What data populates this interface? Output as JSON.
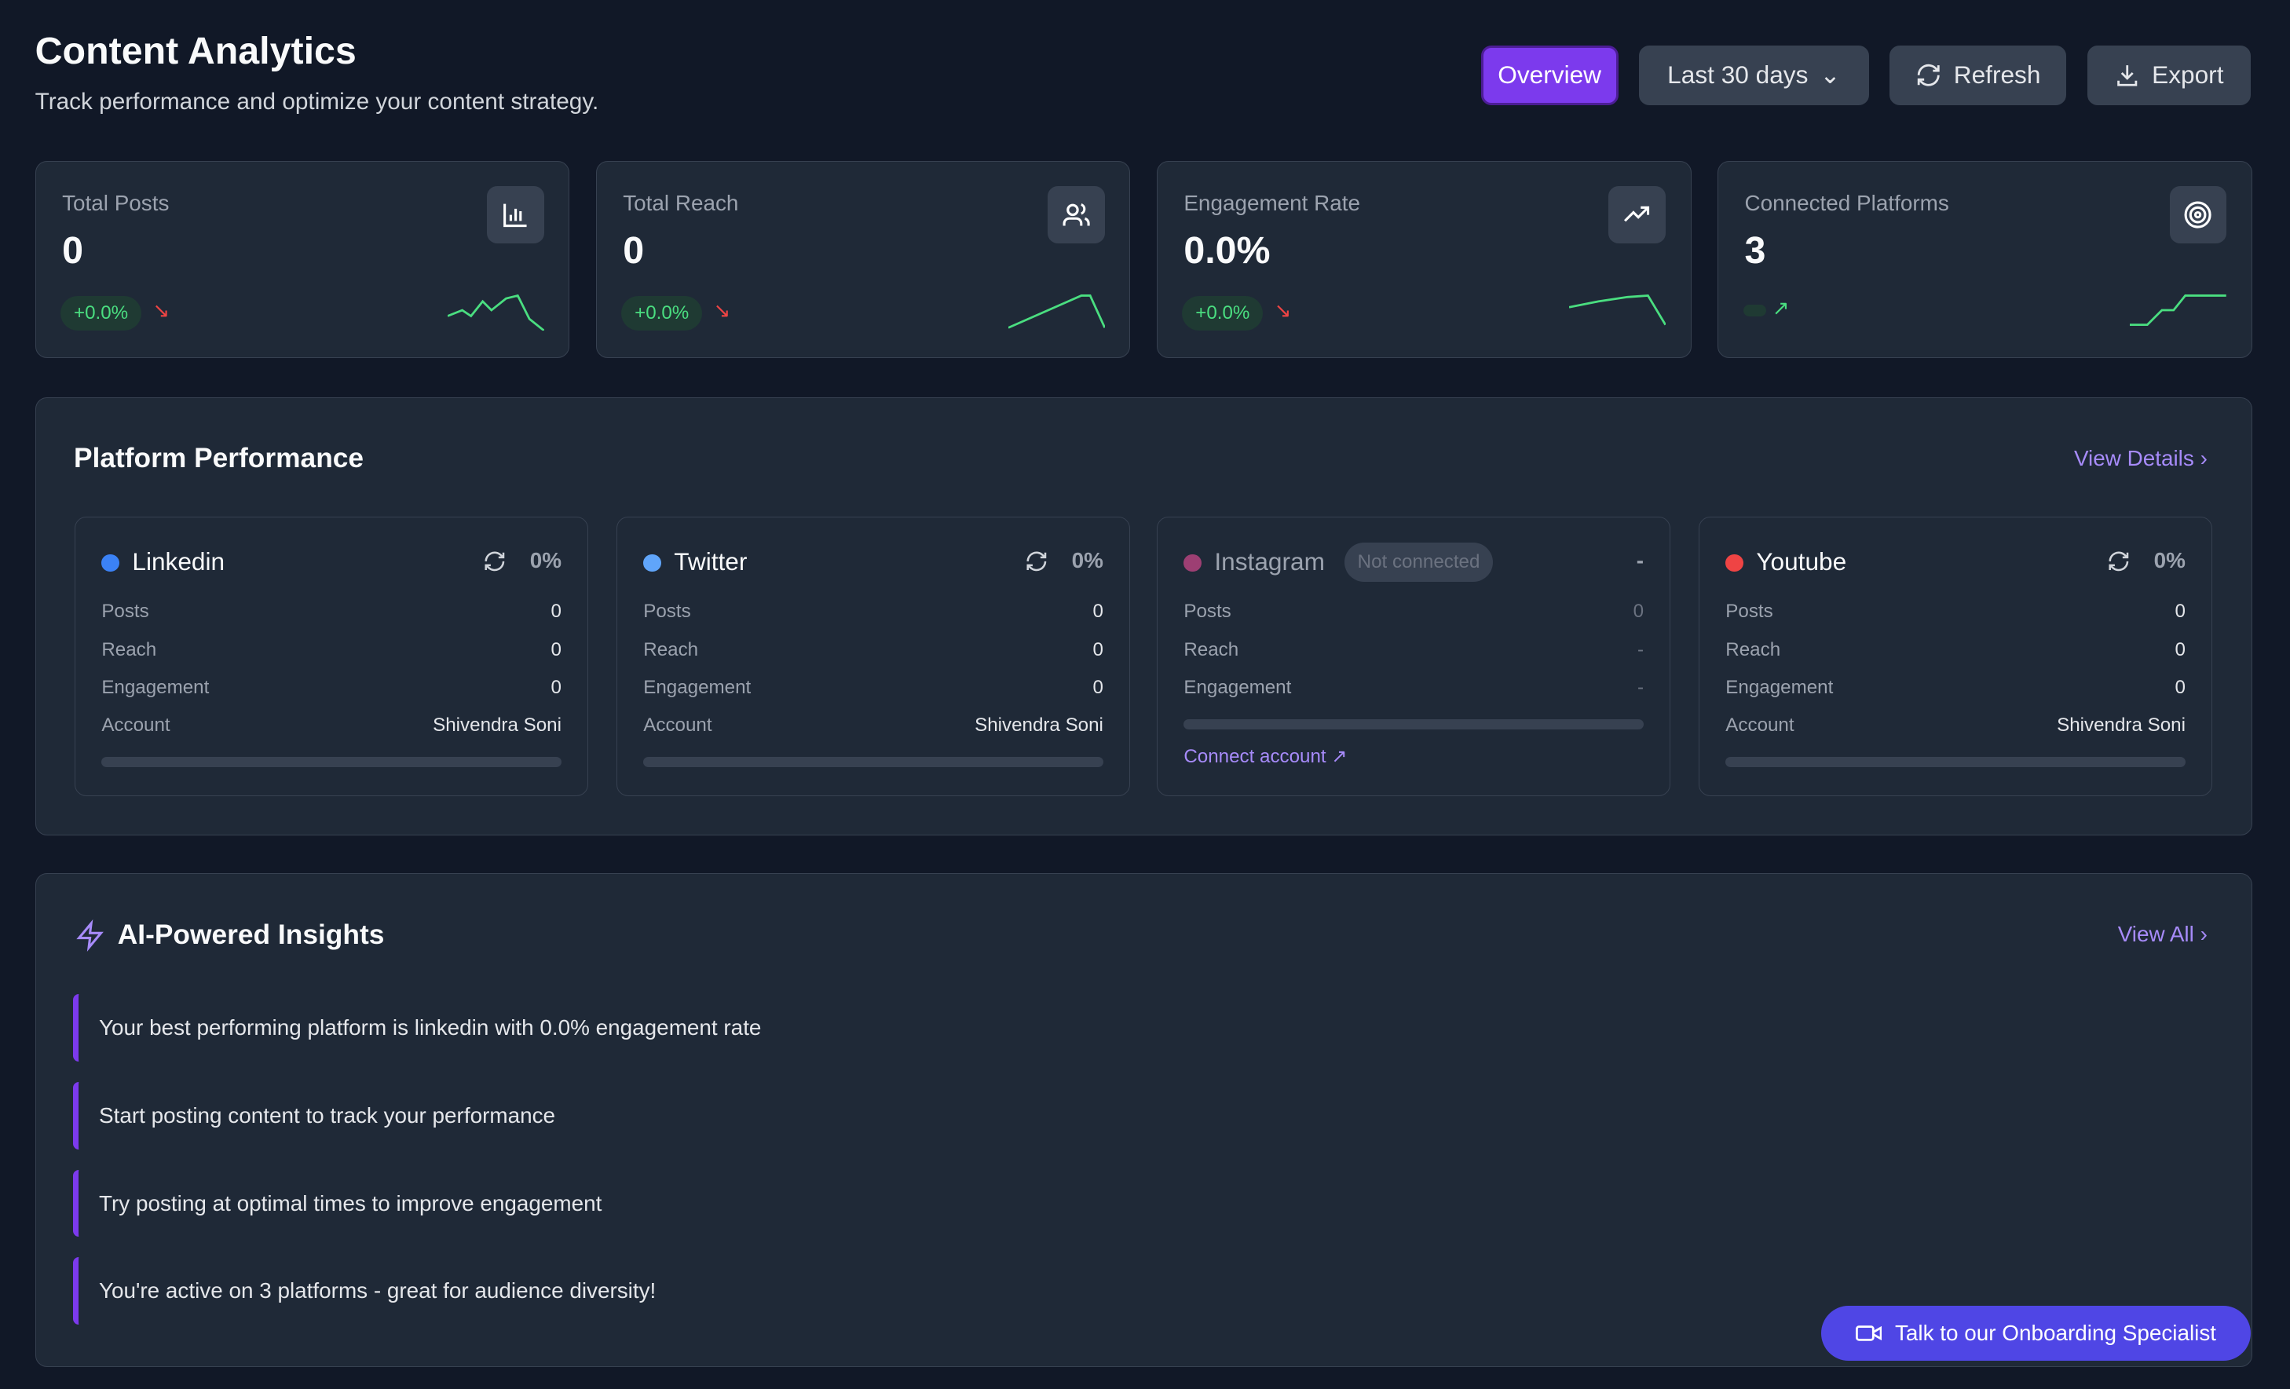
{
  "header": {
    "title": "Content Analytics",
    "subtitle": "Track performance and optimize your content strategy.",
    "overview": "Overview",
    "range": "Last 30 days",
    "refresh": "Refresh",
    "export": "Export"
  },
  "stats": [
    {
      "label": "Total Posts",
      "value": "0",
      "change": "+0.0%",
      "icon": "bar-chart-icon"
    },
    {
      "label": "Total Reach",
      "value": "0",
      "change": "+0.0%",
      "icon": "users-icon"
    },
    {
      "label": "Engagement Rate",
      "value": "0.0%",
      "change": "+0.0%",
      "icon": "trending-up-icon"
    },
    {
      "label": "Connected Platforms",
      "value": "3",
      "change": "",
      "icon": "target-icon"
    }
  ],
  "platforms": {
    "title": "Platform Performance",
    "view_details": "View Details",
    "labels": {
      "posts": "Posts",
      "reach": "Reach",
      "engagement": "Engagement",
      "account": "Account"
    },
    "items": [
      {
        "name": "Linkedin",
        "color": "#3b82f6",
        "pct": "0%",
        "posts": "0",
        "reach": "0",
        "engagement": "0",
        "account": "Shivendra Soni"
      },
      {
        "name": "Twitter",
        "color": "#60a5fa",
        "pct": "0%",
        "posts": "0",
        "reach": "0",
        "engagement": "0",
        "account": "Shivendra Soni"
      },
      {
        "name": "Instagram",
        "color": "#9d3f73",
        "status": "Not connected",
        "pct": "-",
        "posts": "0",
        "reach": "-",
        "engagement": "-",
        "connect": "Connect account"
      },
      {
        "name": "Youtube",
        "color": "#ef4444",
        "pct": "0%",
        "posts": "0",
        "reach": "0",
        "engagement": "0",
        "account": "Shivendra Soni"
      }
    ]
  },
  "insights": {
    "title": "AI-Powered Insights",
    "view_all": "View All",
    "items": [
      "Your best performing platform is linkedin with 0.0% engagement rate",
      "Start posting content to track your performance",
      "Try posting at optimal times to improve engagement",
      "You're active on 3 platforms - great for audience diversity!"
    ]
  },
  "specialist": "Talk to our Onboarding Specialist"
}
